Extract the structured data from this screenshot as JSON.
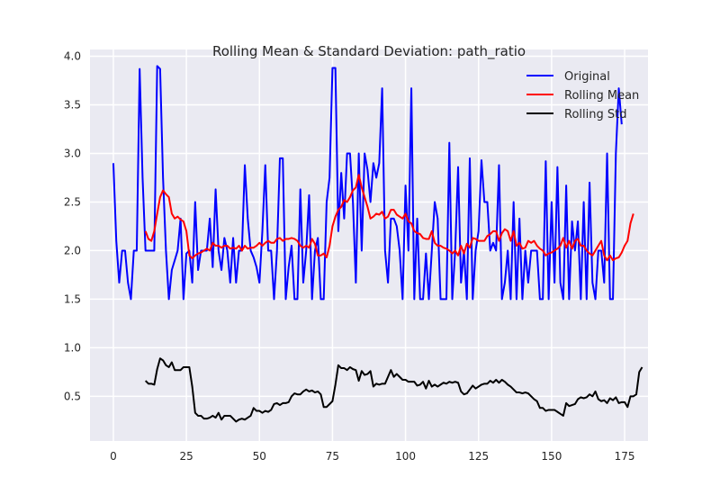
{
  "chart_data": {
    "type": "line",
    "title": "Rolling Mean & Standard Deviation: path_ratio",
    "xlabel": "",
    "ylabel": "",
    "xlim": [
      -8,
      183
    ],
    "ylim": [
      0.04,
      4.07
    ],
    "xticks": [
      0,
      25,
      50,
      75,
      100,
      125,
      150,
      175
    ],
    "yticks": [
      0.5,
      1.0,
      1.5,
      2.0,
      2.5,
      3.0,
      3.5,
      4.0
    ],
    "xtick_labels": [
      "0",
      "25",
      "50",
      "75",
      "100",
      "125",
      "150",
      "175"
    ],
    "ytick_labels": [
      "0.5",
      "1.0",
      "1.5",
      "2.0",
      "2.5",
      "3.0",
      "3.5",
      "4.0"
    ],
    "grid": true,
    "legend_position": "top-right",
    "series": [
      {
        "name": "Original",
        "color": "#0000ff",
        "x_start": 0,
        "values": [
          2.9,
          2.1,
          1.67,
          2.0,
          2.0,
          1.67,
          1.5,
          2.0,
          2.0,
          3.87,
          2.75,
          2.0,
          2.0,
          2.0,
          2.0,
          3.9,
          3.87,
          2.75,
          2.0,
          1.5,
          1.8,
          1.9,
          2.0,
          2.33,
          1.5,
          1.97,
          2.0,
          1.67,
          2.5,
          1.8,
          2.0,
          2.0,
          2.0,
          2.33,
          1.83,
          2.63,
          2.0,
          1.8,
          2.13,
          2.0,
          1.67,
          2.13,
          1.67,
          2.0,
          2.0,
          2.88,
          2.33,
          2.0,
          1.93,
          1.83,
          1.67,
          2.2,
          2.88,
          2.0,
          2.0,
          1.5,
          2.0,
          2.95,
          2.95,
          1.5,
          1.83,
          2.05,
          1.5,
          1.5,
          2.63,
          1.67,
          2.0,
          2.57,
          1.5,
          2.0,
          2.13,
          1.5,
          1.5,
          2.5,
          2.75,
          3.88,
          3.88,
          2.2,
          2.8,
          2.33,
          3.0,
          3.0,
          2.5,
          1.67,
          3.0,
          2.0,
          3.0,
          2.83,
          2.5,
          2.9,
          2.75,
          2.9,
          3.67,
          2.0,
          1.67,
          2.33,
          2.33,
          2.25,
          2.0,
          1.5,
          2.67,
          2.0,
          3.67,
          1.5,
          2.33,
          1.5,
          1.5,
          1.97,
          1.5,
          2.0,
          2.5,
          2.33,
          1.5,
          1.5,
          1.5,
          3.11,
          1.5,
          2.0,
          2.86,
          1.67,
          2.0,
          1.5,
          2.95,
          1.5,
          2.0,
          2.2,
          2.93,
          2.5,
          2.5,
          2.0,
          2.08,
          2.0,
          2.88,
          1.5,
          1.67,
          2.0,
          1.5,
          2.5,
          1.5,
          2.33,
          1.5,
          2.0,
          1.67,
          2.0,
          2.0,
          2.0,
          1.5,
          1.5,
          2.92,
          1.5,
          2.5,
          1.67,
          2.86,
          1.67,
          1.5,
          2.67,
          1.5,
          2.3,
          2.0,
          2.3,
          1.5,
          2.5,
          1.5,
          2.7,
          1.67,
          1.5,
          2.0,
          2.0,
          1.67,
          3.0,
          1.5,
          1.5,
          3.0,
          3.67,
          3.3
        ]
      },
      {
        "name": "Rolling Mean",
        "color": "#ff0000",
        "x_start": 11,
        "values": [
          2.2,
          2.12,
          2.1,
          2.2,
          2.38,
          2.55,
          2.62,
          2.58,
          2.55,
          2.38,
          2.33,
          2.35,
          2.32,
          2.3,
          2.2,
          1.95,
          1.92,
          1.95,
          1.97,
          1.98,
          2.0,
          2.02,
          2.0,
          2.08,
          2.05,
          2.05,
          2.03,
          2.05,
          2.05,
          2.02,
          2.03,
          2.02,
          2.05,
          2.0,
          2.05,
          2.02,
          2.03,
          2.03,
          2.05,
          2.08,
          2.05,
          2.08,
          2.1,
          2.08,
          2.08,
          2.12,
          2.13,
          2.1,
          2.12,
          2.12,
          2.13,
          2.12,
          2.1,
          2.05,
          2.03,
          2.05,
          2.03,
          2.12,
          2.07,
          1.95,
          1.95,
          1.97,
          1.93,
          2.05,
          2.25,
          2.35,
          2.42,
          2.45,
          2.52,
          2.5,
          2.55,
          2.62,
          2.65,
          2.78,
          2.65,
          2.55,
          2.45,
          2.33,
          2.35,
          2.38,
          2.37,
          2.4,
          2.33,
          2.35,
          2.42,
          2.42,
          2.37,
          2.35,
          2.33,
          2.38,
          2.3,
          2.28,
          2.2,
          2.18,
          2.17,
          2.13,
          2.12,
          2.12,
          2.2,
          2.08,
          2.05,
          2.05,
          2.03,
          2.02,
          2.0,
          1.97,
          2.0,
          1.95,
          2.05,
          1.97,
          2.07,
          2.03,
          2.13,
          2.12,
          2.1,
          2.1,
          2.1,
          2.15,
          2.17,
          2.2,
          2.2,
          2.1,
          2.18,
          2.22,
          2.2,
          2.1,
          2.2,
          2.05,
          2.08,
          2.02,
          2.03,
          2.1,
          2.08,
          2.1,
          2.05,
          2.02,
          2.0,
          1.95,
          1.97,
          1.98,
          2.0,
          2.02,
          2.05,
          2.13,
          2.03,
          2.1,
          2.02,
          2.1,
          2.12,
          2.05,
          2.05,
          2.0,
          1.97,
          1.95,
          2.0,
          2.05,
          2.1,
          1.95,
          1.9,
          1.95,
          1.9,
          1.92,
          1.93,
          1.98,
          2.05,
          2.1,
          2.28,
          2.38
        ]
      },
      {
        "name": "Rolling Std",
        "color": "#000000",
        "x_start": 11,
        "values": [
          0.66,
          0.63,
          0.63,
          0.62,
          0.78,
          0.89,
          0.87,
          0.82,
          0.8,
          0.85,
          0.77,
          0.77,
          0.77,
          0.8,
          0.8,
          0.8,
          0.6,
          0.33,
          0.3,
          0.3,
          0.27,
          0.27,
          0.28,
          0.3,
          0.28,
          0.33,
          0.26,
          0.3,
          0.3,
          0.3,
          0.27,
          0.24,
          0.26,
          0.27,
          0.26,
          0.28,
          0.3,
          0.38,
          0.35,
          0.35,
          0.33,
          0.35,
          0.34,
          0.36,
          0.42,
          0.43,
          0.41,
          0.43,
          0.43,
          0.44,
          0.5,
          0.53,
          0.52,
          0.52,
          0.55,
          0.57,
          0.55,
          0.56,
          0.54,
          0.55,
          0.52,
          0.39,
          0.39,
          0.42,
          0.45,
          0.62,
          0.82,
          0.79,
          0.79,
          0.77,
          0.8,
          0.78,
          0.77,
          0.66,
          0.76,
          0.72,
          0.73,
          0.76,
          0.6,
          0.63,
          0.62,
          0.63,
          0.63,
          0.7,
          0.77,
          0.7,
          0.73,
          0.7,
          0.67,
          0.67,
          0.65,
          0.65,
          0.65,
          0.61,
          0.62,
          0.65,
          0.58,
          0.66,
          0.6,
          0.62,
          0.6,
          0.62,
          0.64,
          0.63,
          0.65,
          0.64,
          0.65,
          0.64,
          0.55,
          0.52,
          0.53,
          0.57,
          0.61,
          0.58,
          0.6,
          0.62,
          0.63,
          0.63,
          0.66,
          0.64,
          0.67,
          0.64,
          0.67,
          0.65,
          0.62,
          0.6,
          0.57,
          0.54,
          0.54,
          0.53,
          0.54,
          0.53,
          0.5,
          0.47,
          0.45,
          0.38,
          0.38,
          0.35,
          0.36,
          0.36,
          0.36,
          0.34,
          0.32,
          0.3,
          0.43,
          0.4,
          0.41,
          0.42,
          0.47,
          0.49,
          0.48,
          0.49,
          0.52,
          0.5,
          0.55,
          0.47,
          0.45,
          0.46,
          0.43,
          0.48,
          0.46,
          0.49,
          0.43,
          0.44,
          0.44,
          0.39,
          0.5,
          0.5,
          0.52,
          0.75,
          0.8
        ]
      }
    ]
  }
}
